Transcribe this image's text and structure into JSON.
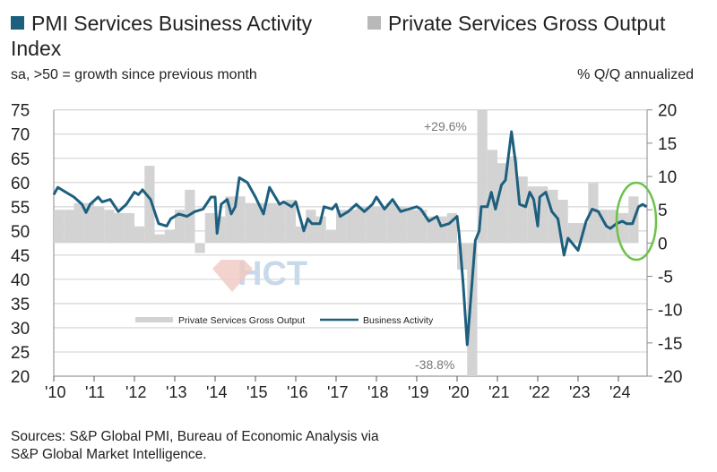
{
  "legend_top": {
    "series1": {
      "label": "PMI Services Business Activity Index",
      "color": "#1d5f7e"
    },
    "series2": {
      "label": "Private Services Gross Output",
      "color": "#c9c9c9"
    }
  },
  "subtitle_left": "sa, >50 = growth since previous month",
  "subtitle_right": "% Q/Q annualized",
  "source": [
    "Sources: S&P Global PMI, Bureau of Economic Analysis via",
    "S&P Global Market Intelligence."
  ],
  "watermark": "HCT",
  "highlight_color": "#6cc24a",
  "chart_data": {
    "type": "bar+line",
    "left_axis": {
      "ylim": [
        20,
        75
      ],
      "ticks": [
        "75",
        "70",
        "65",
        "60",
        "55",
        "50",
        "45",
        "40",
        "35",
        "30",
        "25",
        "20"
      ]
    },
    "right_axis": {
      "ylim": [
        -20,
        20
      ],
      "ticks": [
        "20",
        "15",
        "10",
        "5",
        "0",
        "-5",
        "-10",
        "-15",
        "-20"
      ]
    },
    "x_ticks": [
      "'10",
      "'11",
      "'12",
      "'13",
      "'14",
      "'15",
      "'16",
      "'17",
      "'18",
      "'19",
      "'20",
      "'21",
      "'22",
      "'23",
      "'24"
    ],
    "grid": true,
    "inner_legend": {
      "bar": "Private Services Gross Output",
      "line": "Business Activity"
    },
    "annotations": [
      "+29.6%",
      "-38.8%"
    ],
    "bars": {
      "name": "Private Services Gross Output",
      "axis": "right",
      "quarters": [
        "2010Q1",
        "2010Q2",
        "2010Q3",
        "2010Q4",
        "2011Q1",
        "2011Q2",
        "2011Q3",
        "2011Q4",
        "2012Q1",
        "2012Q2",
        "2012Q3",
        "2012Q4",
        "2013Q1",
        "2013Q2",
        "2013Q3",
        "2013Q4",
        "2014Q1",
        "2014Q2",
        "2014Q3",
        "2014Q4",
        "2015Q1",
        "2015Q2",
        "2015Q3",
        "2015Q4",
        "2016Q1",
        "2016Q2",
        "2016Q3",
        "2016Q4",
        "2017Q1",
        "2017Q2",
        "2017Q3",
        "2017Q4",
        "2018Q1",
        "2018Q2",
        "2018Q3",
        "2018Q4",
        "2019Q1",
        "2019Q2",
        "2019Q3",
        "2019Q4",
        "2020Q1",
        "2020Q2",
        "2020Q3",
        "2020Q4",
        "2021Q1",
        "2021Q2",
        "2021Q3",
        "2021Q4",
        "2022Q1",
        "2022Q2",
        "2022Q3",
        "2022Q4",
        "2023Q1",
        "2023Q2",
        "2023Q3",
        "2023Q4",
        "2024Q1",
        "2024Q2"
      ],
      "values": [
        5,
        5,
        6,
        6,
        5.5,
        5,
        4.5,
        4.5,
        2.5,
        11.6,
        1.3,
        2,
        5,
        8,
        -1.5,
        4.5,
        4,
        7,
        7,
        6,
        6,
        6,
        6,
        6.5,
        2.5,
        5,
        4,
        2,
        5,
        5,
        5.5,
        5.5,
        5.5,
        6,
        5.5,
        5,
        5,
        4,
        4,
        4.5,
        -4,
        -38.8,
        29.6,
        14,
        12,
        13,
        10,
        8.5,
        8.5,
        8,
        6.5,
        3,
        3,
        9,
        5,
        5,
        4.5,
        7
      ]
    },
    "line": {
      "name": "Business Activity",
      "axis": "left",
      "x": [
        2010.0,
        2010.1,
        2010.3,
        2010.5,
        2010.7,
        2010.8,
        2010.9,
        2011.1,
        2011.2,
        2011.4,
        2011.6,
        2011.8,
        2012.0,
        2012.1,
        2012.2,
        2012.4,
        2012.6,
        2012.8,
        2012.9,
        2013.1,
        2013.3,
        2013.5,
        2013.7,
        2013.9,
        2014.0,
        2014.05,
        2014.15,
        2014.3,
        2014.4,
        2014.5,
        2014.6,
        2014.8,
        2015.0,
        2015.2,
        2015.35,
        2015.6,
        2015.7,
        2015.9,
        2016.0,
        2016.2,
        2016.3,
        2016.4,
        2016.6,
        2016.7,
        2016.9,
        2017.0,
        2017.1,
        2017.3,
        2017.5,
        2017.7,
        2017.9,
        2018.0,
        2018.2,
        2018.4,
        2018.6,
        2018.8,
        2019.0,
        2019.1,
        2019.3,
        2019.5,
        2019.6,
        2019.8,
        2020.0,
        2020.05,
        2020.15,
        2020.25,
        2020.35,
        2020.45,
        2020.55,
        2020.6,
        2020.75,
        2020.85,
        2020.95,
        2021.1,
        2021.2,
        2021.35,
        2021.45,
        2021.55,
        2021.7,
        2021.8,
        2021.9,
        2022.0,
        2022.05,
        2022.2,
        2022.35,
        2022.5,
        2022.65,
        2022.75,
        2022.9,
        2023.0,
        2023.1,
        2023.2,
        2023.35,
        2023.5,
        2023.7,
        2023.8,
        2023.95,
        2024.1,
        2024.2,
        2024.35,
        2024.5,
        2024.6,
        2024.7
      ],
      "y": [
        57.5,
        59,
        58,
        57,
        55.5,
        53.8,
        55.5,
        57,
        56,
        56.5,
        54,
        55.5,
        58,
        57.5,
        58.5,
        56.5,
        51.5,
        51,
        52.5,
        53.5,
        53,
        54,
        54.5,
        57,
        57,
        49.5,
        55.5,
        56.5,
        53.5,
        55,
        61,
        60,
        57,
        53.5,
        59,
        55.5,
        56,
        55,
        56,
        50,
        52.5,
        51.5,
        51.5,
        55,
        54.5,
        55.5,
        53,
        54,
        55.5,
        54,
        55.5,
        57,
        54.5,
        56.5,
        54,
        54.5,
        55,
        54.5,
        52,
        53,
        51,
        51.5,
        53,
        49.5,
        39,
        26.5,
        37,
        48,
        50,
        55,
        55,
        58,
        54.5,
        59.5,
        60.5,
        70.5,
        64,
        55.5,
        55,
        58,
        56.5,
        51,
        57,
        58,
        54,
        52.5,
        45,
        48.5,
        47,
        46,
        49,
        52,
        54.5,
        54,
        51,
        50.5,
        51.5,
        52,
        51.5,
        51.5,
        55,
        55.5,
        55
      ]
    }
  }
}
